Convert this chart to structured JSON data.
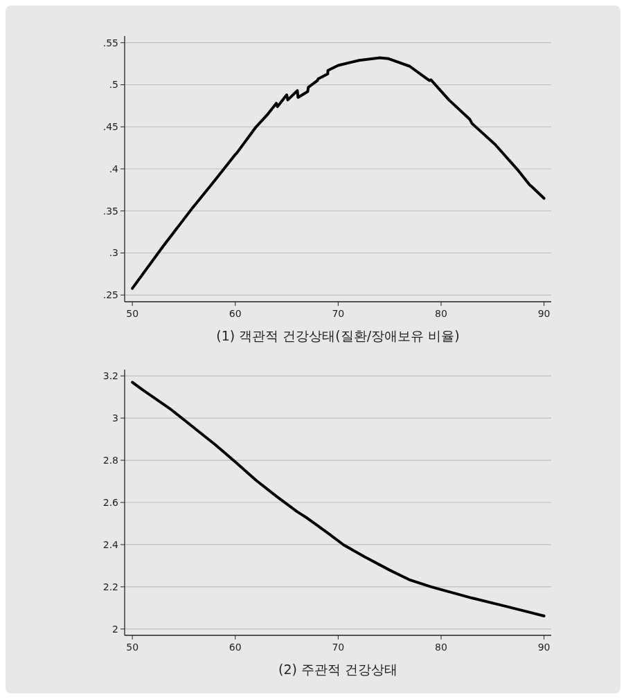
{
  "chart_data": [
    {
      "type": "line",
      "xlabel": "(1) 객관적 건강상태(질환/장애보유 비율)",
      "xlim": [
        49.25,
        90.7
      ],
      "xticks": [
        50,
        60,
        70,
        80,
        90
      ],
      "ylim": [
        0.242,
        0.558
      ],
      "yticks": [
        {
          "value": 0.25,
          "label": ".25"
        },
        {
          "value": 0.3,
          "label": ".3"
        },
        {
          "value": 0.35,
          "label": ".35"
        },
        {
          "value": 0.4,
          "label": ".4"
        },
        {
          "value": 0.45,
          "label": ".45"
        },
        {
          "value": 0.5,
          "label": ".5"
        },
        {
          "value": 0.55,
          "label": ".55"
        }
      ],
      "grid": "y",
      "series": [
        {
          "color": "#000000",
          "x": [
            50,
            52.93,
            55.87,
            57.67,
            60,
            60.16,
            61.96,
            63.09,
            63.99,
            64.1,
            65,
            65.1,
            66.03,
            66.1,
            67.04,
            67.1,
            67.98,
            68.05,
            68.99,
            69,
            70,
            72.02,
            74.04,
            74.9,
            76.95,
            78.07,
            78.86,
            79,
            80.76,
            82.78,
            83,
            85.25,
            87.5,
            88.6,
            88.8,
            90
          ],
          "values": [
            0.258,
            0.307,
            0.354,
            0.381,
            0.417,
            0.419,
            0.449,
            0.464,
            0.478,
            0.474,
            0.488,
            0.482,
            0.493,
            0.485,
            0.492,
            0.497,
            0.505,
            0.507,
            0.513,
            0.517,
            0.523,
            0.529,
            0.532,
            0.531,
            0.522,
            0.512,
            0.505,
            0.506,
            0.482,
            0.459,
            0.454,
            0.429,
            0.398,
            0.381,
            0.379,
            0.365
          ]
        }
      ]
    },
    {
      "type": "line",
      "xlabel": "(2) 주관적 건강상태",
      "xlim": [
        49.25,
        90.7
      ],
      "xticks": [
        50,
        60,
        70,
        80,
        90
      ],
      "ylim": [
        1.97,
        3.23
      ],
      "yticks": [
        2,
        2.2,
        2.4,
        2.6,
        2.8,
        3,
        3.2
      ],
      "grid": "y",
      "series": [
        {
          "color": "#000000",
          "x": [
            50,
            50.96,
            53.8,
            58.05,
            60.03,
            62.02,
            64,
            65.99,
            66.98,
            67.97,
            69.1,
            70.52,
            72.5,
            75.05,
            76.9,
            79.02,
            82.99,
            86.1,
            90
          ],
          "values": [
            3.17,
            3.135,
            3.039,
            2.874,
            2.791,
            2.705,
            2.629,
            2.557,
            2.526,
            2.491,
            2.451,
            2.399,
            2.344,
            2.278,
            2.234,
            2.2,
            2.147,
            2.11,
            2.062
          ]
        }
      ]
    }
  ]
}
